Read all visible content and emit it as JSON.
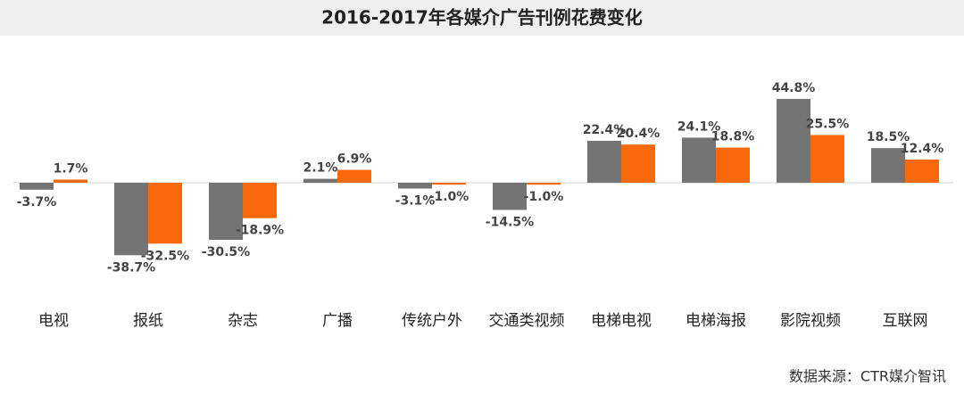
{
  "chart_data": {
    "type": "bar",
    "title": "2016-2017年各媒介广告刊例花费变化",
    "categories": [
      "电视",
      "报纸",
      "杂志",
      "广播",
      "传统户外",
      "交通类视频",
      "电梯电视",
      "电梯海报",
      "影院视频",
      "互联网"
    ],
    "series": [
      {
        "color": "#747474",
        "values": [
          -3.7,
          -38.7,
          -30.5,
          2.1,
          -3.1,
          -14.5,
          22.4,
          24.1,
          44.8,
          18.5
        ],
        "value_labels": [
          "-3.7%",
          "-38.7%",
          "-30.5%",
          "2.1%",
          "-3.1%",
          "-14.5%",
          "22.4%",
          "24.1%",
          "44.8%",
          "18.5%"
        ]
      },
      {
        "color": "#f8690c",
        "values": [
          1.7,
          -32.5,
          -18.9,
          6.9,
          -1.0,
          -1.0,
          20.4,
          18.8,
          25.5,
          12.4
        ],
        "value_labels": [
          "1.7%",
          "-32.5%",
          "-18.9%",
          "6.9%",
          "-1.0%",
          "-1.0%",
          "20.4%",
          "18.8%",
          "25.5%",
          "12.4%"
        ]
      }
    ],
    "source": "数据来源：CTR媒介智讯"
  }
}
